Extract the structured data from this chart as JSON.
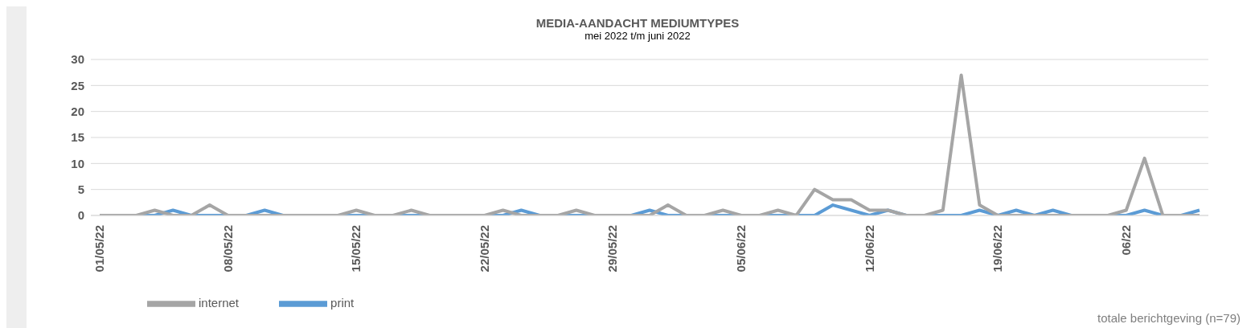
{
  "chart_data": {
    "type": "line",
    "title": "MEDIA-AANDACHT MEDIUMTYPES",
    "subtitle": "mei 2022 t/m juni 2022",
    "categories": [
      "01/05/22",
      null,
      null,
      null,
      null,
      null,
      null,
      "08/05/22",
      null,
      null,
      null,
      null,
      null,
      null,
      "15/05/22",
      null,
      null,
      null,
      null,
      null,
      null,
      "22/05/22",
      null,
      null,
      null,
      null,
      null,
      null,
      "29/05/22",
      null,
      null,
      null,
      null,
      null,
      null,
      "05/06/22",
      null,
      null,
      null,
      null,
      null,
      null,
      "12/06/22",
      null,
      null,
      null,
      null,
      null,
      null,
      "19/06/22",
      null,
      null,
      null,
      null,
      null,
      null,
      "06/22",
      null,
      null,
      null,
      null
    ],
    "series": [
      {
        "name": "print",
        "color": "#5b9bd5",
        "values": [
          0,
          0,
          0,
          0,
          1,
          0,
          0,
          0,
          0,
          1,
          0,
          0,
          0,
          0,
          0,
          0,
          0,
          0,
          0,
          0,
          0,
          0,
          0,
          1,
          0,
          0,
          0,
          0,
          0,
          0,
          1,
          0,
          0,
          0,
          0,
          0,
          0,
          0,
          0,
          0,
          2,
          1,
          0,
          1,
          0,
          0,
          0,
          0,
          1,
          0,
          1,
          0,
          1,
          0,
          0,
          0,
          0,
          1,
          0,
          0,
          1
        ]
      },
      {
        "name": "internet",
        "color": "#a5a5a5",
        "values": [
          0,
          0,
          0,
          1,
          0,
          0,
          2,
          0,
          0,
          0,
          0,
          0,
          0,
          0,
          1,
          0,
          0,
          1,
          0,
          0,
          0,
          0,
          1,
          0,
          0,
          0,
          1,
          0,
          0,
          0,
          0,
          2,
          0,
          0,
          1,
          0,
          0,
          1,
          0,
          5,
          3,
          3,
          1,
          1,
          0,
          0,
          1,
          27,
          2,
          0,
          0,
          0,
          0,
          0,
          0,
          0,
          1,
          11,
          0,
          0,
          0
        ]
      }
    ],
    "ylim": [
      0,
      30
    ],
    "yticks": [
      0,
      5,
      10,
      15,
      20,
      25,
      30
    ],
    "grid": "y",
    "legend": "bottom left",
    "marker": "none",
    "line_style": "solid",
    "annotations": [
      "totale berichtgeving (n=79)"
    ]
  }
}
